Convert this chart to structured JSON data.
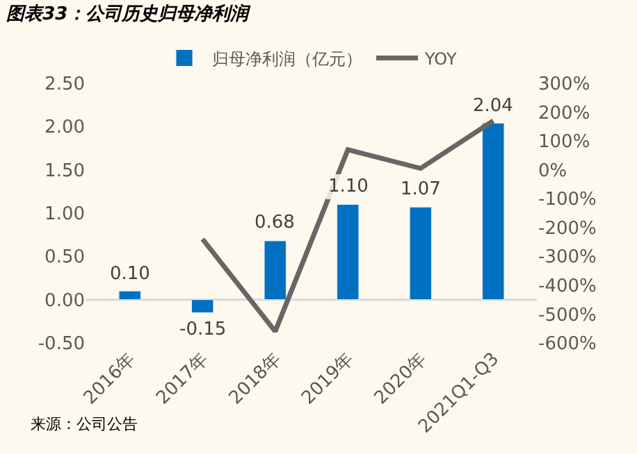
{
  "chart_data": {
    "type": "bar",
    "title": "图表33：公司历史归母净利润",
    "categories": [
      "2016年",
      "2017年",
      "2018年",
      "2019年",
      "2020年",
      "2021Q1-Q3"
    ],
    "series": [
      {
        "name": "归母净利润（亿元）",
        "color": "#0070c0",
        "values": [
          0.1,
          -0.15,
          0.68,
          1.1,
          1.07,
          2.04
        ],
        "value_labels": [
          "0.10",
          "-0.15",
          "0.68",
          "1.10",
          "1.07",
          "2.04"
        ]
      },
      {
        "name": "YOY",
        "type": "line",
        "axis": "y2",
        "color": "#666666",
        "values": [
          null,
          -240,
          -560,
          70,
          5,
          170
        ]
      }
    ],
    "ylim": [
      -0.5,
      2.5
    ],
    "yticks": [
      {
        "value": -0.5,
        "label": "-0.50"
      },
      {
        "value": 0,
        "label": "0.00"
      },
      {
        "value": 0.5,
        "label": "0.50"
      },
      {
        "value": 1,
        "label": "1.00"
      },
      {
        "value": 1.5,
        "label": "1.50"
      },
      {
        "value": 2,
        "label": "2.00"
      },
      {
        "value": 2.5,
        "label": "2.50"
      }
    ],
    "ref_lines": [
      {
        "axis": "y",
        "value": 0,
        "label": null,
        "color": "#d9d9d9"
      }
    ],
    "y2lim": [
      -600,
      300
    ],
    "y2ticks": [
      {
        "value": -600,
        "label": "-600%"
      },
      {
        "value": -500,
        "label": "-500%"
      },
      {
        "value": -400,
        "label": "-400%"
      },
      {
        "value": -300,
        "label": "-300%"
      },
      {
        "value": -200,
        "label": "-200%"
      },
      {
        "value": -100,
        "label": "-100%"
      },
      {
        "value": 0,
        "label": "0%"
      },
      {
        "value": 100,
        "label": "100%"
      },
      {
        "value": 200,
        "label": "200%"
      },
      {
        "value": 300,
        "label": "300%"
      }
    ],
    "grid": false,
    "legend": "top",
    "marker": "none",
    "annotations": [
      "来源：公司公告"
    ]
  }
}
